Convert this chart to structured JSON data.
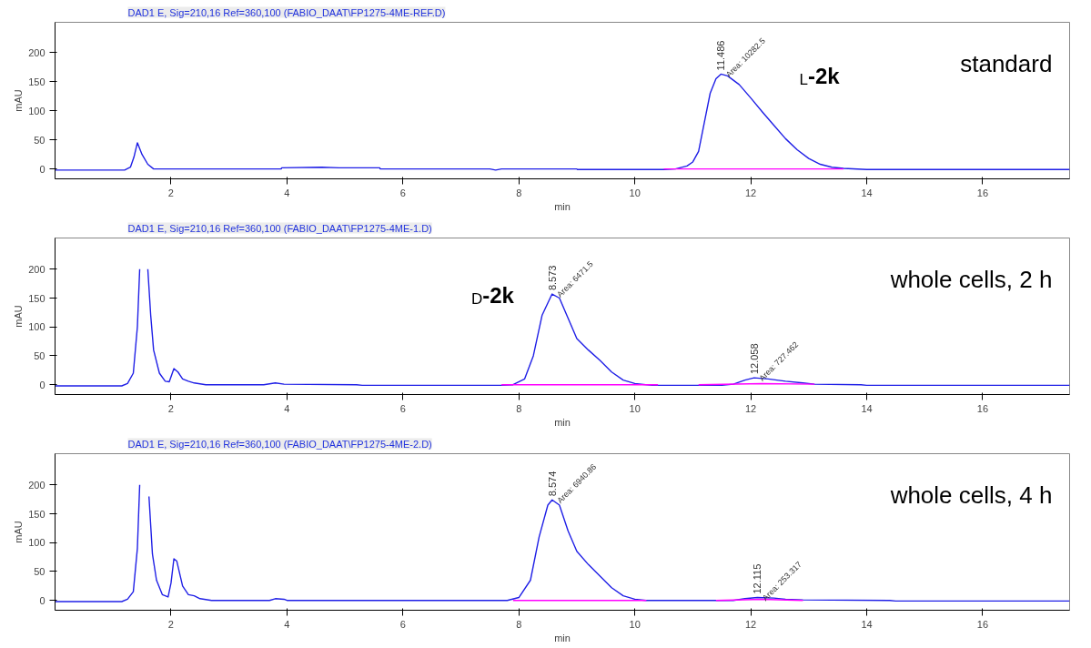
{
  "chart_data": [
    {
      "type": "line",
      "title": "DAD1 E, Sig=210,16 Ref=360,100 (FABIO_DAAT\\FP1275-4ME-REF.D)",
      "xlabel": "min",
      "ylabel": "mAU",
      "xlim": [
        0,
        17.5
      ],
      "ylim": [
        -17,
        252
      ],
      "xticks": [
        2,
        4,
        6,
        8,
        10,
        12,
        14,
        16
      ],
      "yticks": [
        0,
        50,
        100,
        150,
        200
      ],
      "grid": false,
      "series": [
        {
          "color": "#1f1fe6",
          "x": [
            0,
            1.2,
            1.3,
            1.36,
            1.42,
            1.5,
            1.6,
            1.7,
            3.3,
            3.31,
            3.9,
            3.91,
            4.6,
            4.9,
            5.6,
            5.61,
            7.5,
            7.6,
            7.7,
            9.0,
            9.01,
            10.5,
            10.7,
            10.9,
            11.0,
            11.1,
            11.2,
            11.3,
            11.4,
            11.486,
            11.6,
            11.8,
            12.0,
            12.2,
            12.4,
            12.6,
            12.8,
            13.0,
            13.2,
            13.4,
            13.6,
            14.0,
            17.5
          ],
          "values": [
            -2,
            -2,
            3,
            20,
            45,
            25,
            8,
            0,
            0,
            0,
            0,
            2,
            3,
            2,
            2,
            0,
            0,
            -2,
            0,
            0,
            -1,
            -1,
            0,
            5,
            12,
            30,
            80,
            130,
            155,
            163,
            160,
            145,
            122,
            98,
            75,
            52,
            33,
            18,
            8,
            3,
            1,
            -1,
            -1
          ]
        },
        {
          "color": "#ff00ff",
          "x": [
            10.5,
            13.6
          ],
          "values": [
            0,
            0
          ]
        }
      ],
      "annotations": [
        {
          "text": "11.486",
          "x": 11.486,
          "y": 163
        },
        {
          "text": "Area: 10282.5",
          "x": 11.486,
          "y": 163
        },
        "L-2k",
        "standard"
      ]
    },
    {
      "type": "line",
      "title": "DAD1 E, Sig=210,16 Ref=360,100 (FABIO_DAAT\\FP1275-4ME-1.D)",
      "xlabel": "min",
      "ylabel": "mAU",
      "xlim": [
        0,
        17.5
      ],
      "ylim": [
        -17,
        254
      ],
      "xticks": [
        2,
        4,
        6,
        8,
        10,
        12,
        14,
        16
      ],
      "yticks": [
        0,
        50,
        100,
        150,
        200
      ],
      "grid": false,
      "series": [
        {
          "color": "#1f1fe6",
          "x": [
            0,
            1.15,
            1.25,
            1.35,
            1.42,
            1.46,
            1.5,
            1.55,
            1.6,
            1.65,
            1.7,
            1.8,
            1.9,
            1.97,
            2.05,
            2.12,
            2.2,
            2.3,
            2.4,
            2.6,
            3.6,
            3.8,
            3.95,
            5.2,
            5.3,
            7.7,
            7.9,
            8.1,
            8.25,
            8.4,
            8.573,
            8.7,
            8.85,
            9.0,
            9.2,
            9.4,
            9.6,
            9.8,
            10.0,
            10.3,
            11.5,
            11.7,
            11.9,
            12.058,
            12.3,
            12.6,
            12.9,
            13.1,
            13.9,
            14.0,
            17.5
          ],
          "values": [
            -2,
            -2,
            2,
            20,
            100,
            200,
            null,
            null,
            200,
            120,
            60,
            20,
            6,
            5,
            28,
            22,
            10,
            6,
            3,
            0,
            0,
            3,
            1,
            0,
            -1,
            -1,
            0,
            10,
            50,
            120,
            157,
            150,
            115,
            80,
            60,
            42,
            22,
            8,
            2,
            -1,
            -1,
            1,
            8,
            12,
            10,
            6,
            3,
            1,
            0,
            -1,
            -1
          ]
        },
        {
          "color": "#ff00ff",
          "x": [
            7.7,
            10.4
          ],
          "values": [
            0,
            0
          ]
        },
        {
          "color": "#ff00ff",
          "x": [
            11.1,
            12.2,
            13.1
          ],
          "values": [
            0,
            2,
            1
          ]
        }
      ],
      "annotations": [
        {
          "text": "8.573",
          "x": 8.573,
          "y": 157
        },
        {
          "text": "Area: 6471.5",
          "x": 8.573,
          "y": 157
        },
        {
          "text": "12.058",
          "x": 12.058,
          "y": 12
        },
        {
          "text": "Area: 727.462",
          "x": 12.058,
          "y": 12
        },
        "D-2k",
        "whole cells, 2 h"
      ]
    },
    {
      "type": "line",
      "title": "DAD1 E, Sig=210,16 Ref=360,100 (FABIO_DAAT\\FP1275-4ME-2.D)",
      "xlabel": "min",
      "ylabel": "mAU",
      "xlim": [
        0,
        17.5
      ],
      "ylim": [
        -17,
        254
      ],
      "xticks": [
        2,
        4,
        6,
        8,
        10,
        12,
        14,
        16
      ],
      "yticks": [
        0,
        50,
        100,
        150,
        200
      ],
      "grid": false,
      "series": [
        {
          "color": "#1f1fe6",
          "x": [
            0,
            1.15,
            1.25,
            1.35,
            1.42,
            1.46,
            1.5,
            1.57,
            1.62,
            1.68,
            1.75,
            1.85,
            1.95,
            2.0,
            2.05,
            2.1,
            2.2,
            2.3,
            2.4,
            2.5,
            2.7,
            3.7,
            3.8,
            3.95,
            4.0,
            7.8,
            8.0,
            8.2,
            8.35,
            8.5,
            8.574,
            8.7,
            8.85,
            9.0,
            9.2,
            9.4,
            9.6,
            9.8,
            10.0,
            10.2,
            11.7,
            11.9,
            12.115,
            12.4,
            12.6,
            12.9,
            14.4,
            14.5,
            17.5
          ],
          "values": [
            -2,
            -2,
            2,
            15,
            90,
            200,
            null,
            null,
            180,
            80,
            35,
            10,
            6,
            30,
            72,
            68,
            25,
            10,
            8,
            3,
            0,
            0,
            3,
            2,
            0,
            0,
            5,
            35,
            110,
            165,
            174,
            165,
            120,
            85,
            62,
            42,
            22,
            8,
            2,
            0,
            0,
            3,
            5,
            4,
            2,
            1,
            0,
            -1,
            -1
          ]
        },
        {
          "color": "#ff00ff",
          "x": [
            7.9,
            10.2
          ],
          "values": [
            0,
            0
          ]
        },
        {
          "color": "#ff00ff",
          "x": [
            11.4,
            12.2,
            12.9
          ],
          "values": [
            0,
            2,
            0
          ]
        }
      ],
      "annotations": [
        {
          "text": "8.574",
          "x": 8.574,
          "y": 174
        },
        {
          "text": "Area: 6940.86",
          "x": 8.574,
          "y": 174
        },
        {
          "text": "12.115",
          "x": 12.115,
          "y": 5
        },
        {
          "text": "Area: 253.317",
          "x": 12.115,
          "y": 5
        },
        "whole cells, 4 h"
      ]
    }
  ]
}
